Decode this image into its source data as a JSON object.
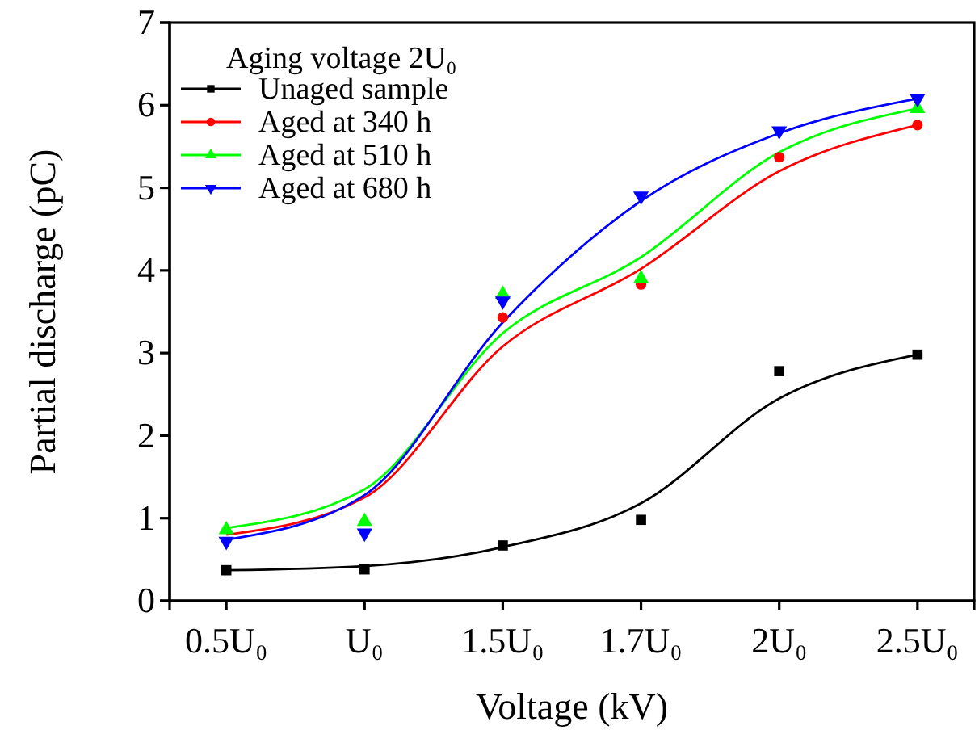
{
  "chart_data": {
    "type": "scatter",
    "xlabel": "Voltage (kV)",
    "ylabel": "Partial discharge (pC)",
    "legend_title": "Aging voltage 2U₀",
    "categories": [
      "0.5U₀",
      "U₀",
      "1.5U₀",
      "1.7U₀",
      "2U₀",
      "2.5U₀"
    ],
    "ylim": [
      0,
      7
    ],
    "yticks": [
      0,
      1,
      2,
      3,
      4,
      5,
      6,
      7
    ],
    "legend": "top left",
    "grid": false,
    "series": [
      {
        "name": "Unaged sample",
        "color": "#000000",
        "marker": "square",
        "values": [
          0.37,
          0.38,
          0.67,
          0.98,
          2.78,
          2.98
        ]
      },
      {
        "name": "Aged at 340 h",
        "color": "#ff0000",
        "marker": "circle",
        "values": [
          null,
          null,
          3.43,
          3.83,
          5.37,
          5.76
        ]
      },
      {
        "name": "Aged at 510 h",
        "color": "#00ff00",
        "marker": "triangle",
        "values": [
          0.86,
          0.96,
          3.71,
          3.9,
          null,
          5.96
        ]
      },
      {
        "name": "Aged at 680 h",
        "color": "#0000ff",
        "marker": "triangle-down",
        "values": [
          0.72,
          0.82,
          3.63,
          4.9,
          5.69,
          6.08
        ]
      },
      {
        "type": "line",
        "color": "#000000",
        "values": [
          0.37,
          0.42,
          0.65,
          1.18,
          2.45,
          2.98
        ]
      },
      {
        "type": "line",
        "color": "#ff0000",
        "values": [
          0.8,
          1.25,
          3.08,
          4.02,
          5.2,
          5.76
        ]
      },
      {
        "type": "line",
        "color": "#00ff00",
        "values": [
          0.88,
          1.35,
          3.24,
          4.16,
          5.43,
          5.96
        ]
      },
      {
        "type": "line",
        "color": "#0000ff",
        "values": [
          0.74,
          1.28,
          3.37,
          4.84,
          5.66,
          6.08
        ]
      }
    ]
  }
}
